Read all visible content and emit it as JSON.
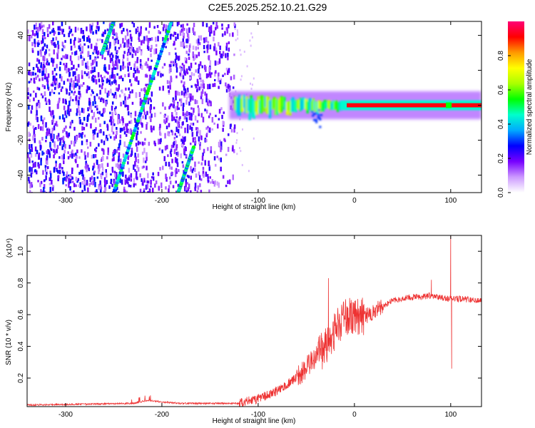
{
  "chart_data": [
    {
      "type": "heatmap",
      "title": "C2E5.2025.252.10.21.G29",
      "xlabel": "Height of straight line (km)",
      "ylabel": "Frequency (Hz)",
      "xlim": [
        -340,
        132
      ],
      "ylim": [
        -50,
        48
      ],
      "xticks": [
        -300,
        -200,
        -100,
        0,
        100
      ],
      "yticks": [
        -40,
        -20,
        0,
        20,
        40
      ],
      "colorbar": {
        "label": "Normalized spectral amplitude",
        "range": [
          0,
          1
        ],
        "ticks": [
          "0.0",
          "0.2",
          "0.4",
          "0.6",
          "0.8"
        ],
        "colors": [
          "#ffffff",
          "#cc99ff",
          "#7700ff",
          "#0000ff",
          "#00aaff",
          "#00ffcc",
          "#00ff00",
          "#aaff00",
          "#ffff00",
          "#ff9900",
          "#ff0000",
          "#ff0077"
        ]
      },
      "features": {
        "noise_region": [
          -340,
          -125
        ],
        "main_signal": {
          "start_km": -125,
          "end_km": 132,
          "frequency_hz": 0
        },
        "diagonal_tracks": [
          {
            "x0": -250,
            "y0": 48,
            "x1": -262,
            "y1": 30
          },
          {
            "x0": -250,
            "y0": -50,
            "x1": -190,
            "y1": 48
          },
          {
            "x0": -183,
            "y0": -50,
            "x1": -167,
            "y1": -24
          }
        ]
      }
    },
    {
      "type": "line",
      "series": [
        {
          "name": "SNR",
          "color": "#ee3333"
        }
      ],
      "xlabel": "Height of straight line (km)",
      "ylabel": "SNR (10 * v/v)",
      "multiplier": "(x10⁴)",
      "xlim": [
        -340,
        132
      ],
      "ylim": [
        0.02,
        1.1
      ],
      "xticks": [
        -300,
        -200,
        -100,
        0,
        100
      ],
      "yticks": [
        0.2,
        0.4,
        0.6,
        0.8,
        1
      ],
      "ytick_labels": [
        "0.2",
        "0.4",
        "0.6",
        "0.8",
        "1.0"
      ],
      "profile": [
        [
          -340,
          0.03
        ],
        [
          -230,
          0.04
        ],
        [
          -215,
          0.06
        ],
        [
          -200,
          0.05
        ],
        [
          -180,
          0.04
        ],
        [
          -120,
          0.04
        ],
        [
          -100,
          0.07
        ],
        [
          -80,
          0.12
        ],
        [
          -60,
          0.2
        ],
        [
          -45,
          0.3
        ],
        [
          -35,
          0.36
        ],
        [
          -25,
          0.45
        ],
        [
          -15,
          0.55
        ],
        [
          -5,
          0.6
        ],
        [
          5,
          0.58
        ],
        [
          15,
          0.6
        ],
        [
          25,
          0.64
        ],
        [
          40,
          0.69
        ],
        [
          60,
          0.71
        ],
        [
          80,
          0.72
        ],
        [
          100,
          0.7
        ],
        [
          110,
          0.7
        ],
        [
          132,
          0.69
        ]
      ],
      "spikes": [
        {
          "x": -27,
          "y": 0.83
        },
        {
          "x": 80,
          "y": 0.82
        },
        {
          "x": 100,
          "y": 1.1
        },
        {
          "x": 101,
          "y": 0.26
        }
      ]
    }
  ]
}
